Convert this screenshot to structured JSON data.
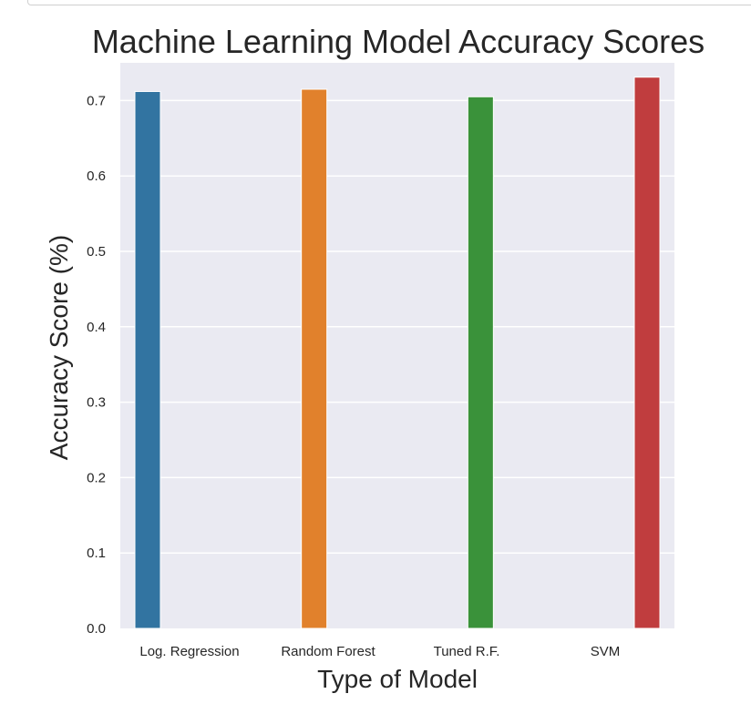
{
  "chart_data": {
    "type": "bar",
    "title": "Machine Learning Model Accuracy Scores",
    "xlabel": "Type of Model",
    "ylabel": "Accuracy Score (%)",
    "categories": [
      "Log. Regression",
      "Random Forest",
      "Tuned R.F.",
      "SVM"
    ],
    "values": [
      0.712,
      0.715,
      0.705,
      0.731
    ],
    "colors": [
      "#3274a1",
      "#e1812c",
      "#3a923a",
      "#c03d3e"
    ],
    "ylim": [
      0.0,
      0.75
    ],
    "yticks": [
      0.0,
      0.1,
      0.2,
      0.3,
      0.4,
      0.5,
      0.6,
      0.7
    ],
    "ytick_labels": [
      "0.0",
      "0.1",
      "0.2",
      "0.3",
      "0.4",
      "0.5",
      "0.6",
      "0.7"
    ],
    "grid": true,
    "grid_axis": "y",
    "plot_background": "#eaeaf2",
    "grid_color": "#ffffff"
  }
}
